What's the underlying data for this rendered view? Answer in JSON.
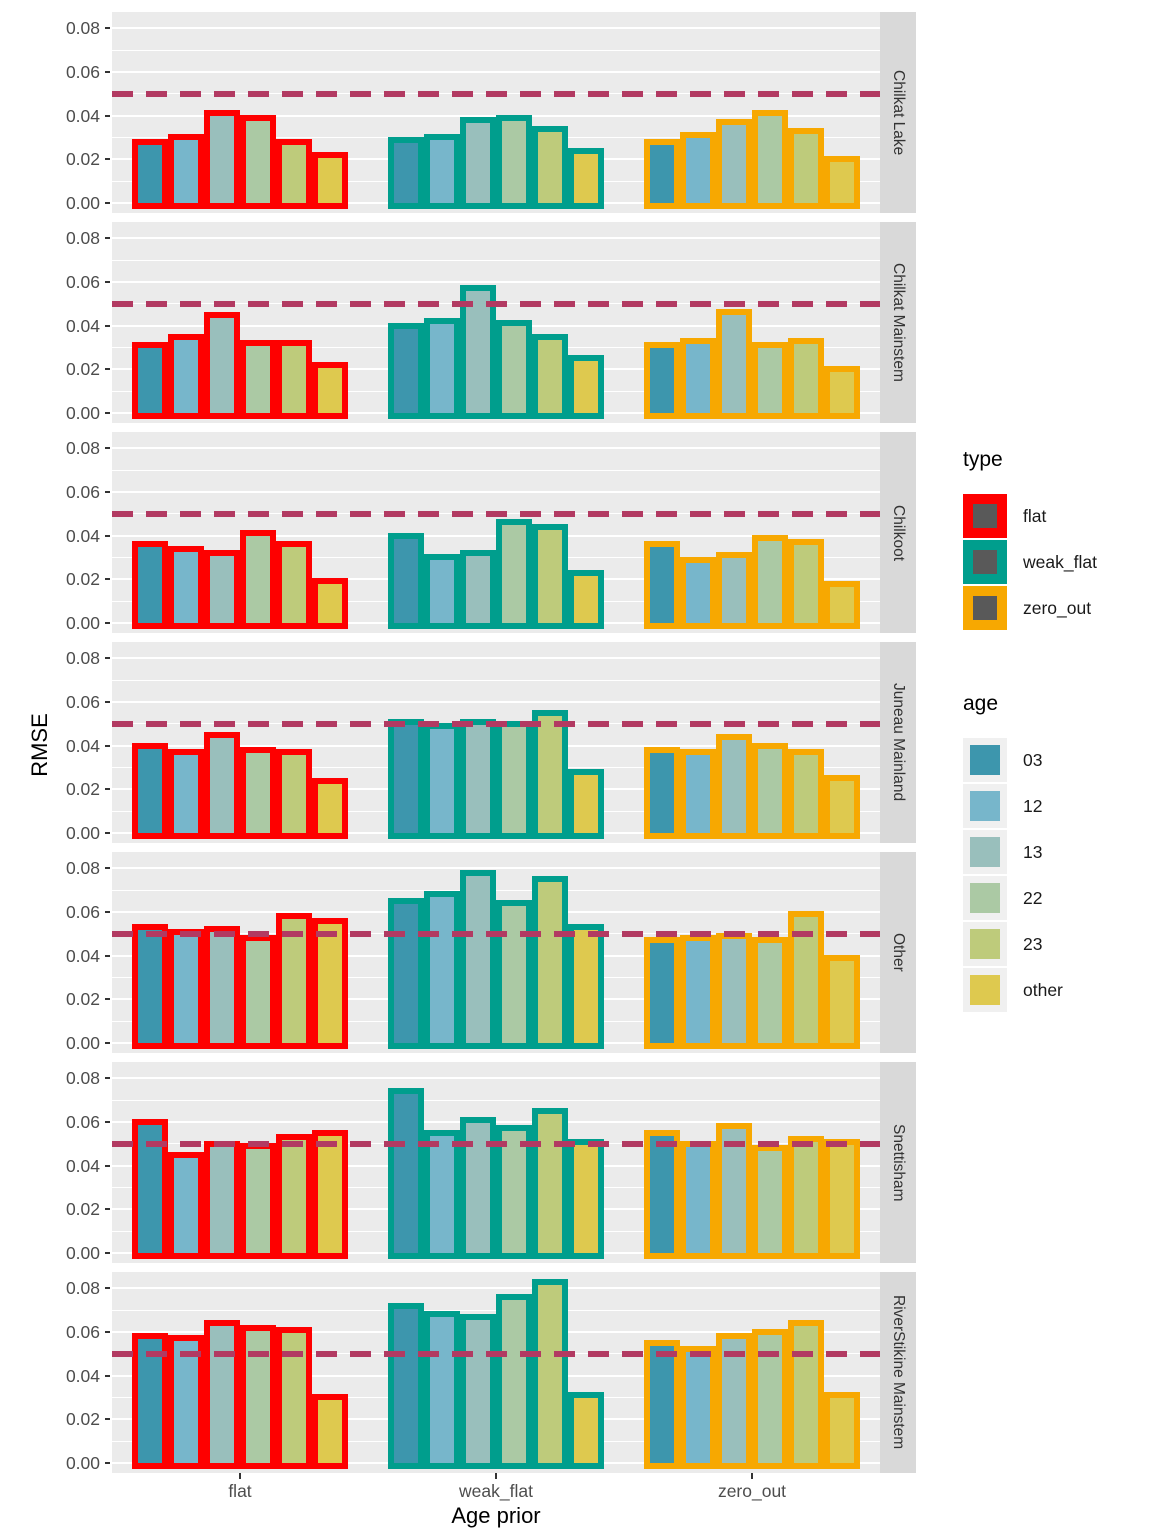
{
  "figure": {
    "y_axis_title": "RMSE",
    "x_axis_title": "Age prior",
    "y_tick_labels": [
      "0.08",
      "0.06",
      "0.04",
      "0.02",
      "0.00"
    ],
    "x_tick_labels": [
      "flat",
      "weak_flat",
      "zero_out"
    ]
  },
  "legend": {
    "type": {
      "title": "type",
      "entries": [
        {
          "label": "flat",
          "color": "#FE0000"
        },
        {
          "label": "weak_flat",
          "color": "#009E8D"
        },
        {
          "label": "zero_out",
          "color": "#F7A801"
        }
      ]
    },
    "age": {
      "title": "age",
      "entries": [
        {
          "label": "03",
          "color": "#3D96AD"
        },
        {
          "label": "12",
          "color": "#77B6CB"
        },
        {
          "label": "13",
          "color": "#99BFBC"
        },
        {
          "label": "22",
          "color": "#ABC9A4"
        },
        {
          "label": "23",
          "color": "#BECB7B"
        },
        {
          "label": "other",
          "color": "#DEC94F"
        }
      ]
    }
  },
  "chart_data": {
    "type": "bar",
    "title": "",
    "xlabel": "Age prior",
    "ylabel": "RMSE",
    "x_categories": [
      "flat",
      "weak_flat",
      "zero_out"
    ],
    "age_levels": [
      "03",
      "12",
      "13",
      "22",
      "23",
      "other"
    ],
    "ylim": [
      0,
      0.08
    ],
    "y_major_ticks": [
      0,
      0.02,
      0.04,
      0.06,
      0.08
    ],
    "y_minor_ticks": [
      0.01,
      0.03,
      0.05,
      0.07
    ],
    "reference_line_y": 0.05,
    "grid": true,
    "legend_position": "right",
    "facets": [
      {
        "label": "Chilkat Lake",
        "values": {
          "flat": [
            0.028,
            0.03,
            0.041,
            0.039,
            0.028,
            0.022
          ],
          "weak_flat": [
            0.029,
            0.03,
            0.038,
            0.039,
            0.034,
            0.024
          ],
          "zero_out": [
            0.028,
            0.031,
            0.037,
            0.041,
            0.033,
            0.02
          ]
        }
      },
      {
        "label": "Chilkat Mainstem",
        "values": {
          "flat": [
            0.031,
            0.035,
            0.045,
            0.032,
            0.032,
            0.022
          ],
          "weak_flat": [
            0.04,
            0.042,
            0.057,
            0.041,
            0.035,
            0.025
          ],
          "zero_out": [
            0.031,
            0.033,
            0.046,
            0.031,
            0.033,
            0.02
          ]
        }
      },
      {
        "label": "Chilkoot",
        "values": {
          "flat": [
            0.036,
            0.034,
            0.032,
            0.041,
            0.036,
            0.019
          ],
          "weak_flat": [
            0.04,
            0.03,
            0.032,
            0.046,
            0.044,
            0.023
          ],
          "zero_out": [
            0.036,
            0.029,
            0.031,
            0.039,
            0.037,
            0.018
          ]
        }
      },
      {
        "label": "Juneau Mainland",
        "values": {
          "flat": [
            0.04,
            0.037,
            0.045,
            0.038,
            0.037,
            0.024
          ],
          "weak_flat": [
            0.051,
            0.049,
            0.051,
            0.05,
            0.055,
            0.028
          ],
          "zero_out": [
            0.038,
            0.037,
            0.044,
            0.04,
            0.037,
            0.025
          ]
        }
      },
      {
        "label": "Other",
        "values": {
          "flat": [
            0.053,
            0.051,
            0.052,
            0.048,
            0.058,
            0.056
          ],
          "weak_flat": [
            0.065,
            0.068,
            0.078,
            0.064,
            0.075,
            0.053
          ],
          "zero_out": [
            0.047,
            0.048,
            0.049,
            0.047,
            0.059,
            0.039
          ]
        }
      },
      {
        "label": "Snettisham",
        "values": {
          "flat": [
            0.06,
            0.045,
            0.05,
            0.049,
            0.053,
            0.055
          ],
          "weak_flat": [
            0.074,
            0.055,
            0.061,
            0.057,
            0.065,
            0.051
          ],
          "zero_out": [
            0.055,
            0.05,
            0.058,
            0.048,
            0.052,
            0.051
          ]
        }
      },
      {
        "label": "RiverStikine Mainstem",
        "values": {
          "flat": [
            0.058,
            0.057,
            0.064,
            0.062,
            0.061,
            0.03
          ],
          "weak_flat": [
            0.072,
            0.068,
            0.067,
            0.076,
            0.083,
            0.031
          ],
          "zero_out": [
            0.055,
            0.052,
            0.058,
            0.06,
            0.064,
            0.031
          ]
        }
      }
    ],
    "colors": {
      "age_fill": {
        "03": "#3D96AD",
        "12": "#77B6CB",
        "13": "#99BFBC",
        "22": "#ABC9A4",
        "23": "#BECB7B",
        "other": "#DEC94F"
      },
      "type_outline": {
        "flat": "#FE0000",
        "weak_flat": "#009E8D",
        "zero_out": "#F7A801"
      },
      "reference_line": "#B23A62",
      "panel_background": "#EBEBEB",
      "strip_background": "#D9D9D9",
      "gridline": "#FFFFFF"
    }
  }
}
